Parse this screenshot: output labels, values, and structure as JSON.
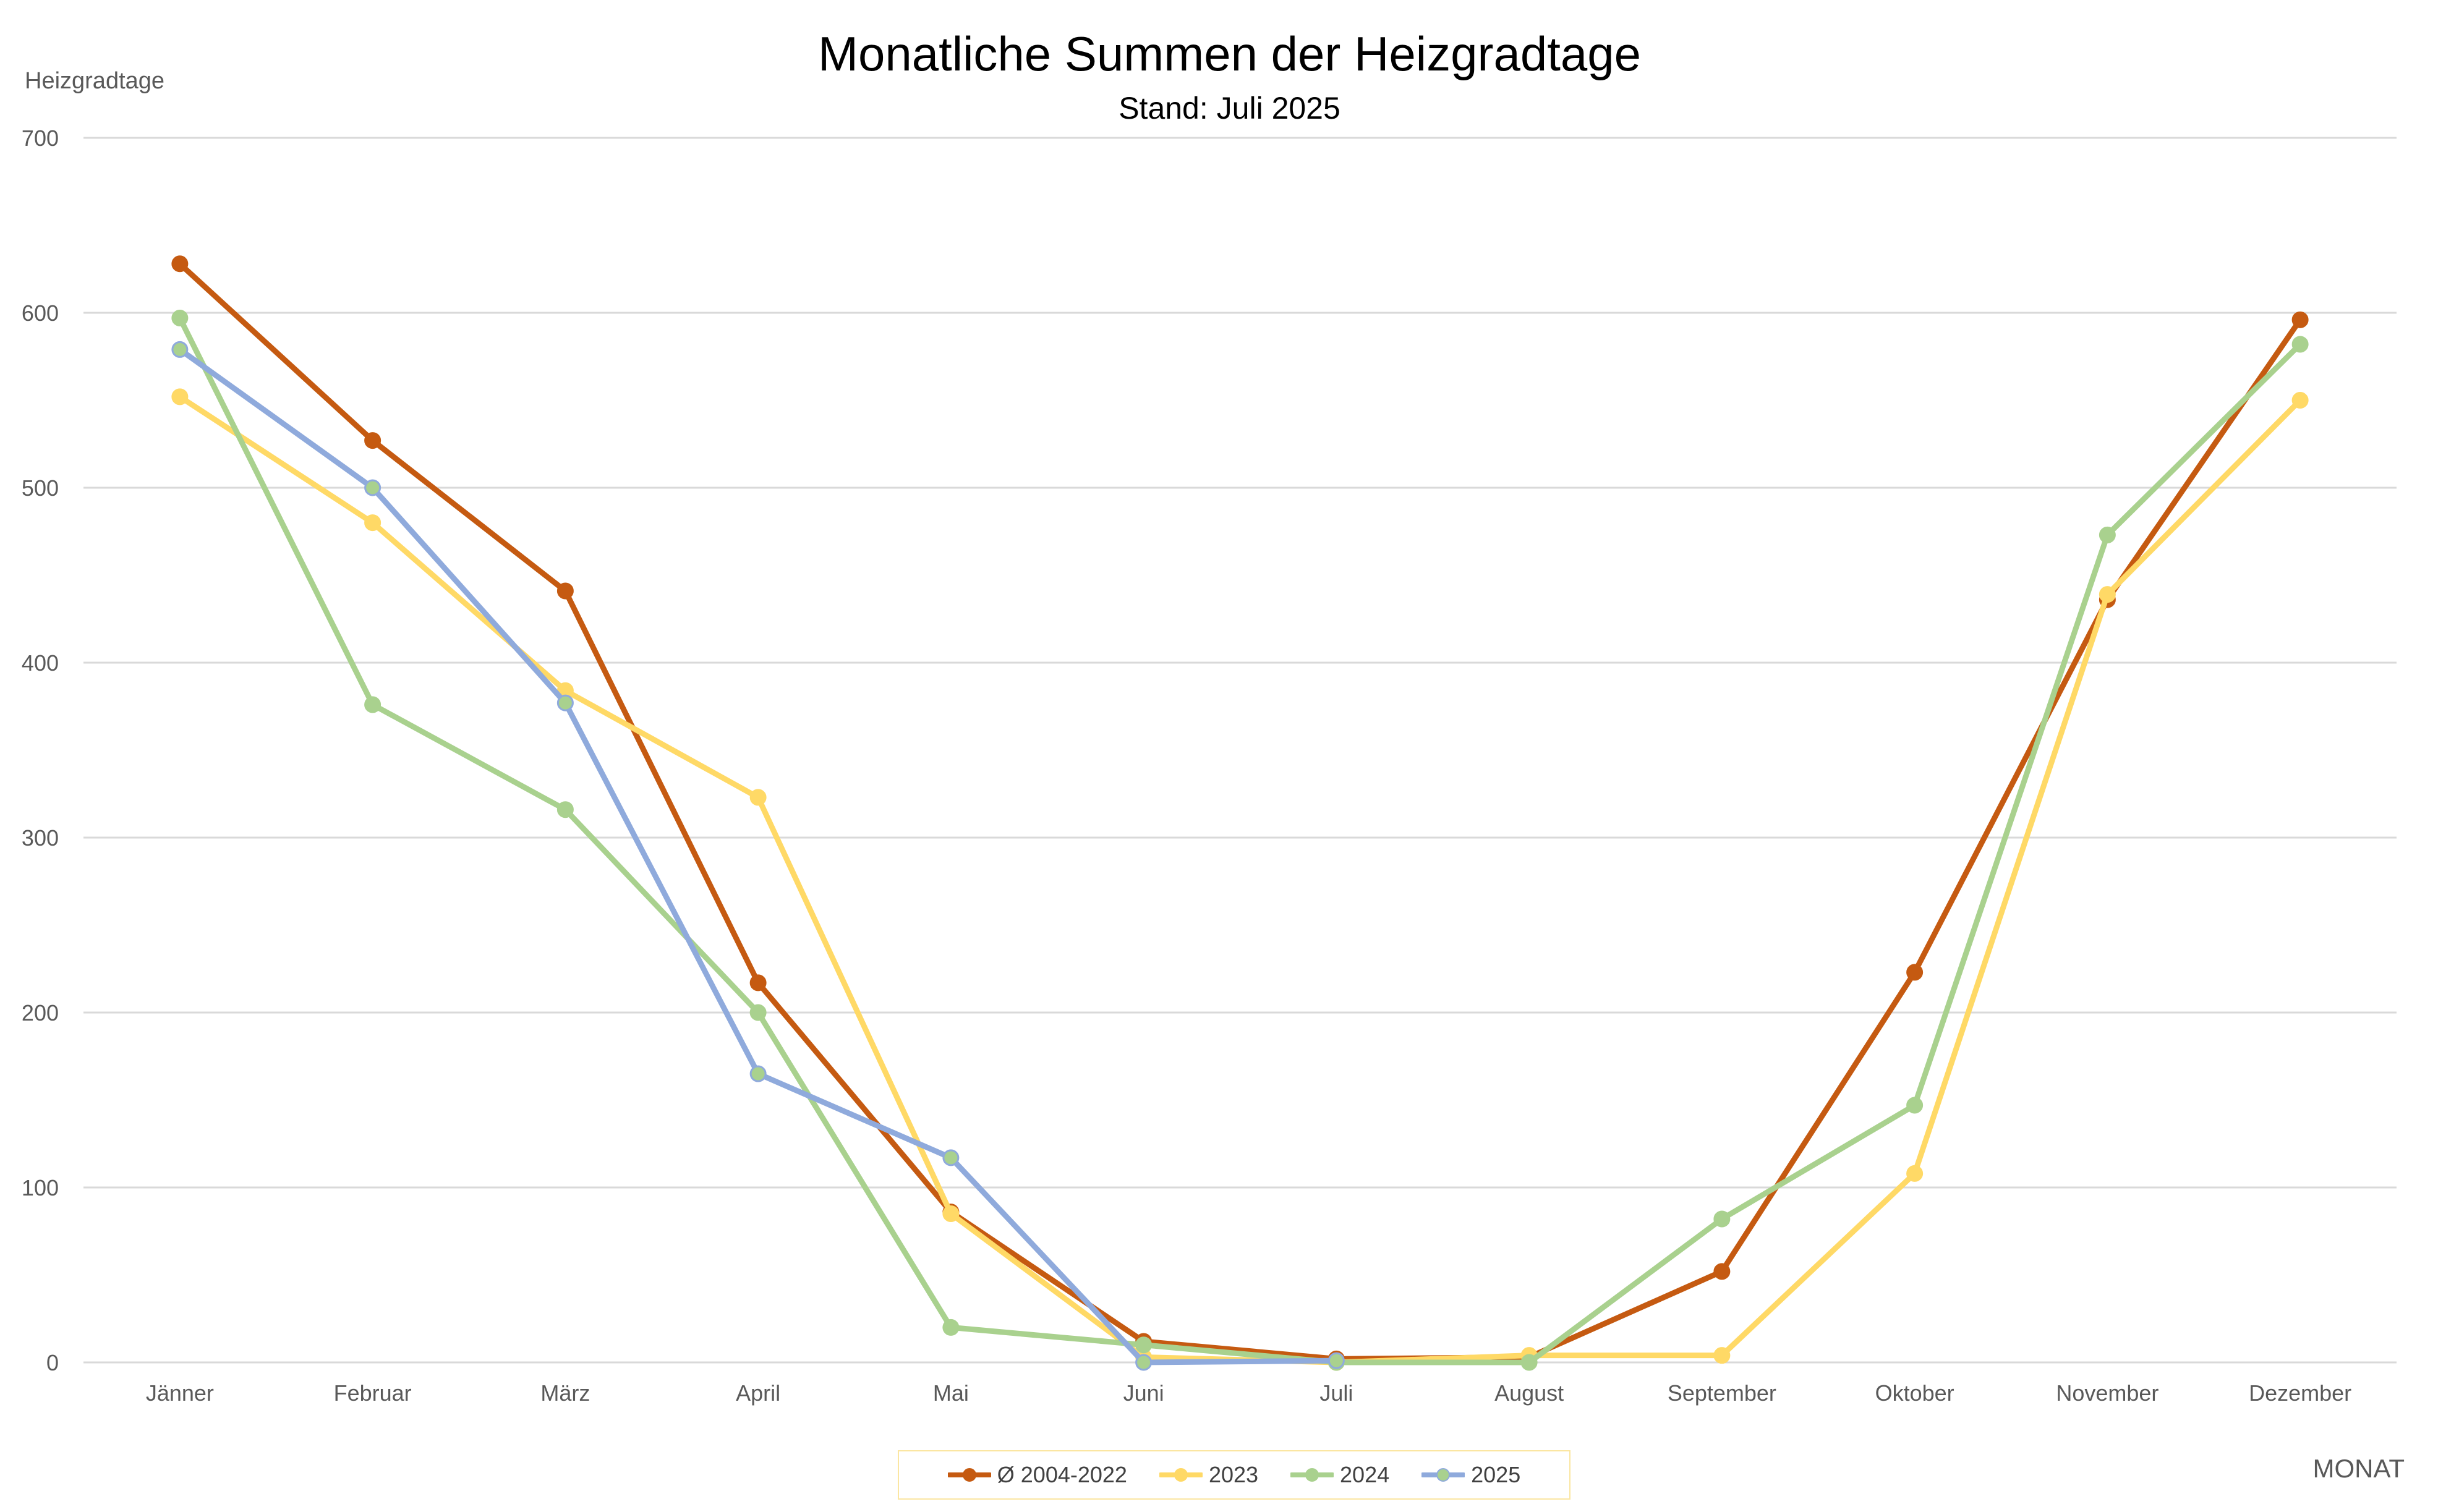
{
  "chart_data": {
    "type": "line",
    "title": "Monatliche Summen der Heizgradtage",
    "subtitle": "Stand: Juli 2025",
    "ylabel": "Heizgradtage",
    "xlabel": "MONAT",
    "ylim": [
      0,
      700
    ],
    "yticks": [
      "0",
      "100",
      "200",
      "300",
      "400",
      "500",
      "600",
      "700"
    ],
    "categories": [
      "Jänner",
      "Februar",
      "März",
      "April",
      "Mai",
      "Juni",
      "Juli",
      "August",
      "September",
      "Oktober",
      "November",
      "Dezember"
    ],
    "grid": "horizontal",
    "legend_position": "bottom",
    "series": [
      {
        "name": "Ø 2004-2022",
        "color": "#c55a11",
        "marker_color": "#c55a11",
        "values": [
          628,
          527,
          441,
          217,
          86,
          12,
          2,
          3,
          52,
          223,
          436,
          596
        ]
      },
      {
        "name": "2023",
        "color": "#ffd966",
        "marker_color": "#ffd966",
        "values": [
          552,
          480,
          384,
          323,
          85,
          3,
          0,
          4,
          4,
          108,
          439,
          550
        ]
      },
      {
        "name": "2024",
        "color": "#a9d18e",
        "marker_color": "#a9d18e",
        "values": [
          597,
          376,
          316,
          200,
          20,
          10,
          0,
          0,
          82,
          147,
          473,
          582
        ]
      },
      {
        "name": "2025",
        "color": "#8faadc",
        "marker_color": "#a9d18e",
        "values": [
          579,
          500,
          377,
          165,
          117,
          0,
          1,
          null,
          null,
          null,
          null,
          null
        ]
      }
    ]
  }
}
